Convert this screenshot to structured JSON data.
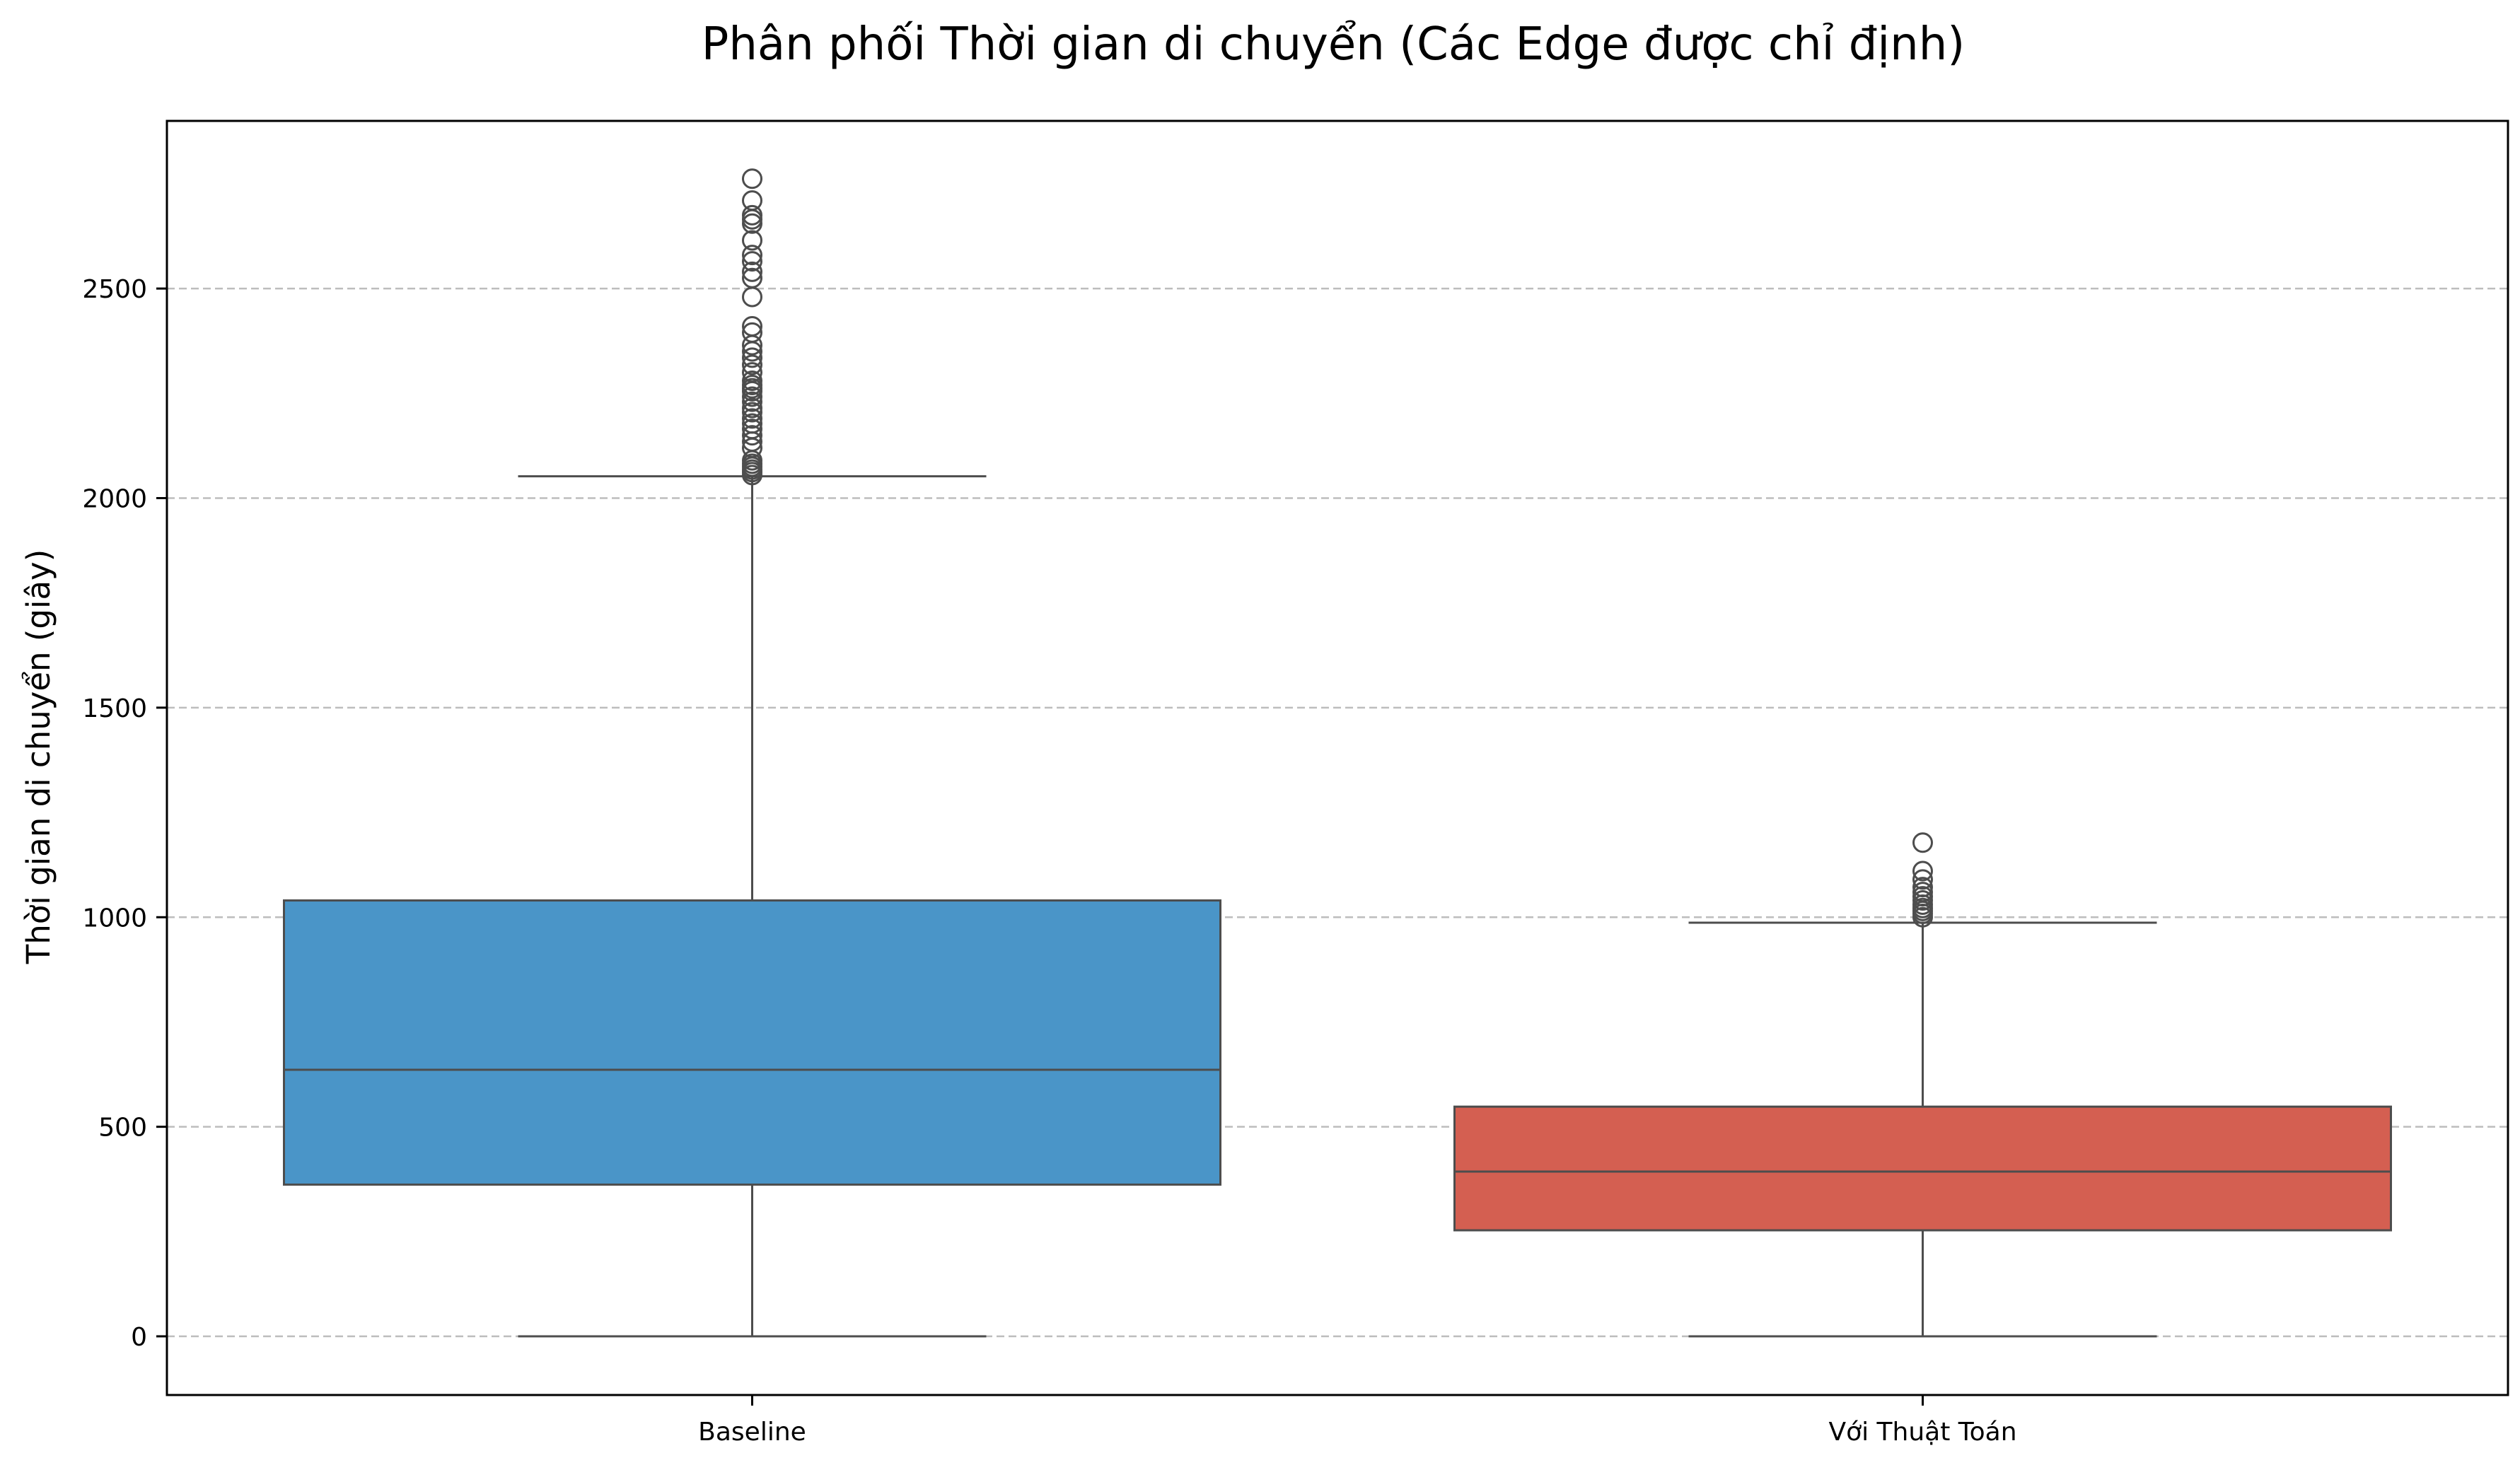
{
  "chart_data": {
    "type": "boxplot",
    "title": "Phân phối Thời gian di chuyển (Các Edge được chỉ định)",
    "xlabel": "",
    "ylabel": "Thời gian di chuyển (giây)",
    "ylim": [
      -140,
      2900
    ],
    "yticks": [
      0,
      500,
      1000,
      1500,
      2000,
      2500
    ],
    "grid": {
      "axis": "y",
      "style": "dashed"
    },
    "categories": [
      "Baseline",
      "Với Thuật Toán"
    ],
    "boxes": [
      {
        "category": "Baseline",
        "color": "#4a95c8",
        "whisker_low": 0,
        "q1": 362,
        "median": 636,
        "q3": 1040,
        "whisker_high": 2052,
        "outliers": [
          2055,
          2062,
          2068,
          2075,
          2082,
          2090,
          2120,
          2135,
          2150,
          2165,
          2178,
          2190,
          2205,
          2215,
          2230,
          2242,
          2255,
          2262,
          2270,
          2280,
          2300,
          2318,
          2335,
          2350,
          2365,
          2395,
          2410,
          2480,
          2525,
          2540,
          2565,
          2580,
          2615,
          2655,
          2665,
          2675,
          2710,
          2762
        ]
      },
      {
        "category": "Với Thuật Toán",
        "color": "#d45f51",
        "whisker_low": 0,
        "q1": 253,
        "median": 393,
        "q3": 548,
        "whisker_high": 987,
        "outliers": [
          1000,
          1008,
          1015,
          1022,
          1030,
          1040,
          1050,
          1060,
          1072,
          1090,
          1110,
          1178
        ]
      }
    ]
  }
}
